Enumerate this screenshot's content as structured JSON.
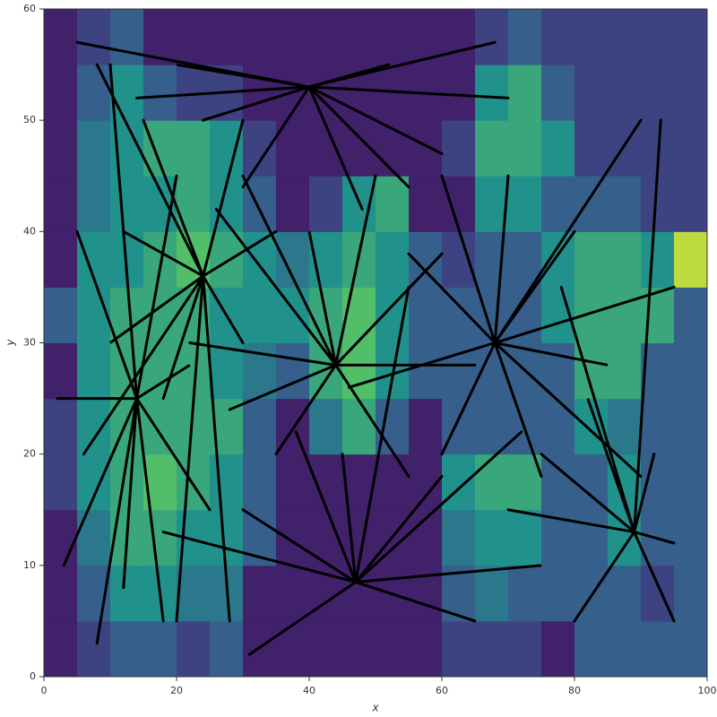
{
  "chart_data": {
    "type": "heatmap",
    "xlabel": "x",
    "ylabel": "y",
    "xlim": [
      0,
      100
    ],
    "ylim": [
      0,
      60
    ],
    "xticks": [
      0,
      20,
      40,
      60,
      80,
      100
    ],
    "yticks": [
      0,
      10,
      20,
      30,
      40,
      50,
      60
    ],
    "colormap": "viridis",
    "xbins": [
      0,
      5,
      10,
      15,
      20,
      25,
      30,
      35,
      40,
      45,
      50,
      55,
      60,
      65,
      70,
      75,
      80,
      85,
      90,
      95,
      100
    ],
    "ybins": [
      0,
      5,
      10,
      15,
      20,
      25,
      30,
      35,
      40,
      45,
      50,
      55,
      60
    ],
    "z": [
      [
        0.1,
        0.2,
        0.3,
        0.3,
        0.2,
        0.3,
        0.1,
        0.1,
        0.1,
        0.1,
        0.1,
        0.1,
        0.2,
        0.2,
        0.2,
        0.1,
        0.3,
        0.3,
        0.3,
        0.3
      ],
      [
        0.1,
        0.3,
        0.5,
        0.5,
        0.4,
        0.4,
        0.1,
        0.1,
        0.1,
        0.1,
        0.1,
        0.1,
        0.3,
        0.4,
        0.3,
        0.3,
        0.3,
        0.3,
        0.2,
        0.3
      ],
      [
        0.1,
        0.4,
        0.6,
        0.6,
        0.5,
        0.5,
        0.3,
        0.1,
        0.1,
        0.1,
        0.1,
        0.1,
        0.4,
        0.5,
        0.5,
        0.3,
        0.3,
        0.5,
        0.3,
        0.3
      ],
      [
        0.2,
        0.5,
        0.6,
        0.7,
        0.6,
        0.5,
        0.3,
        0.1,
        0.1,
        0.1,
        0.1,
        0.1,
        0.5,
        0.6,
        0.6,
        0.3,
        0.3,
        0.5,
        0.3,
        0.3
      ],
      [
        0.2,
        0.5,
        0.6,
        0.6,
        0.6,
        0.6,
        0.3,
        0.1,
        0.4,
        0.6,
        0.3,
        0.1,
        0.3,
        0.3,
        0.3,
        0.3,
        0.5,
        0.4,
        0.3,
        0.3
      ],
      [
        0.1,
        0.5,
        0.6,
        0.6,
        0.6,
        0.5,
        0.4,
        0.3,
        0.6,
        0.7,
        0.5,
        0.3,
        0.3,
        0.3,
        0.3,
        0.3,
        0.6,
        0.6,
        0.3,
        0.3
      ],
      [
        0.3,
        0.5,
        0.6,
        0.6,
        0.6,
        0.5,
        0.5,
        0.5,
        0.6,
        0.7,
        0.5,
        0.3,
        0.3,
        0.3,
        0.3,
        0.5,
        0.6,
        0.6,
        0.6,
        0.3
      ],
      [
        0.1,
        0.5,
        0.5,
        0.6,
        0.7,
        0.6,
        0.5,
        0.4,
        0.5,
        0.6,
        0.5,
        0.3,
        0.2,
        0.3,
        0.3,
        0.5,
        0.6,
        0.6,
        0.5,
        0.9
      ],
      [
        0.1,
        0.4,
        0.5,
        0.5,
        0.6,
        0.5,
        0.3,
        0.1,
        0.2,
        0.5,
        0.6,
        0.1,
        0.1,
        0.5,
        0.5,
        0.3,
        0.3,
        0.3,
        0.2,
        0.2
      ],
      [
        0.1,
        0.4,
        0.5,
        0.6,
        0.6,
        0.5,
        0.2,
        0.1,
        0.1,
        0.1,
        0.1,
        0.1,
        0.2,
        0.6,
        0.6,
        0.5,
        0.2,
        0.2,
        0.2,
        0.2
      ],
      [
        0.1,
        0.3,
        0.5,
        0.3,
        0.2,
        0.2,
        0.1,
        0.1,
        0.1,
        0.1,
        0.1,
        0.1,
        0.1,
        0.5,
        0.6,
        0.3,
        0.2,
        0.2,
        0.2,
        0.2
      ],
      [
        0.1,
        0.2,
        0.3,
        0.1,
        0.1,
        0.1,
        0.1,
        0.1,
        0.1,
        0.1,
        0.1,
        0.1,
        0.1,
        0.2,
        0.3,
        0.2,
        0.2,
        0.2,
        0.2,
        0.2
      ]
    ],
    "lines": [
      {
        "color": "#000000",
        "x": [
          40,
          5,
          40,
          14,
          40,
          24,
          40,
          52,
          40,
          68,
          40,
          30,
          40,
          48,
          40,
          55,
          40,
          60,
          40,
          70,
          40,
          20
        ],
        "y": [
          53,
          57,
          53,
          52,
          53,
          50,
          53,
          55,
          53,
          57,
          53,
          44,
          53,
          42,
          53,
          44,
          53,
          47,
          53,
          52,
          53,
          55
        ]
      },
      {
        "color": "#000000",
        "x": [
          68,
          90,
          68,
          95,
          68,
          80,
          68,
          55,
          68,
          60,
          68,
          46,
          68,
          75,
          68,
          90,
          68,
          60,
          68,
          70,
          68,
          85
        ],
        "y": [
          30,
          50,
          30,
          35,
          30,
          40,
          30,
          38,
          30,
          45,
          30,
          26,
          30,
          18,
          30,
          18,
          30,
          20,
          30,
          45,
          30,
          28
        ]
      },
      {
        "color": "#000000",
        "x": [
          47,
          31,
          47,
          65,
          47,
          60,
          47,
          30,
          47,
          45,
          47,
          72,
          47,
          55,
          47,
          38,
          47,
          18,
          47,
          75
        ],
        "y": [
          8.5,
          2,
          8.5,
          5,
          8.5,
          18,
          8.5,
          15,
          8.5,
          20,
          8.5,
          22,
          8.5,
          35,
          8.5,
          22,
          8.5,
          13,
          8.5,
          10
        ]
      },
      {
        "color": "#000000",
        "x": [
          44,
          26,
          44,
          22,
          44,
          30,
          44,
          35,
          44,
          55,
          44,
          60,
          44,
          50,
          44,
          28,
          44,
          65,
          44,
          40
        ],
        "y": [
          28,
          42,
          28,
          30,
          28,
          45,
          28,
          20,
          28,
          18,
          28,
          38,
          28,
          45,
          28,
          24,
          28,
          28,
          28,
          40
        ]
      },
      {
        "color": "#000000",
        "x": [
          89,
          92,
          89,
          95,
          89,
          75,
          89,
          80,
          89,
          70,
          89,
          93,
          89,
          78,
          89,
          95,
          89,
          82
        ],
        "y": [
          13,
          20,
          13,
          5,
          13,
          20,
          13,
          5,
          13,
          15,
          13,
          50,
          13,
          35,
          13,
          12,
          13,
          25
        ]
      },
      {
        "color": "#000000",
        "x": [
          24,
          8,
          24,
          15,
          24,
          30,
          24,
          12,
          24,
          6,
          24,
          20,
          24,
          28,
          24,
          35,
          24,
          18,
          24,
          30,
          24,
          10
        ],
        "y": [
          36,
          55,
          36,
          50,
          36,
          50,
          36,
          40,
          36,
          20,
          36,
          5,
          36,
          5,
          36,
          40,
          36,
          25,
          36,
          30,
          36,
          30
        ]
      },
      {
        "color": "#000000",
        "x": [
          14,
          3,
          14,
          5,
          14,
          10,
          14,
          20,
          14,
          18,
          14,
          8,
          14,
          25,
          14,
          2,
          14,
          12,
          14,
          22
        ],
        "y": [
          25,
          10,
          25,
          40,
          25,
          55,
          25,
          45,
          25,
          5,
          25,
          3,
          25,
          15,
          25,
          25,
          25,
          8,
          25,
          28
        ]
      }
    ]
  }
}
